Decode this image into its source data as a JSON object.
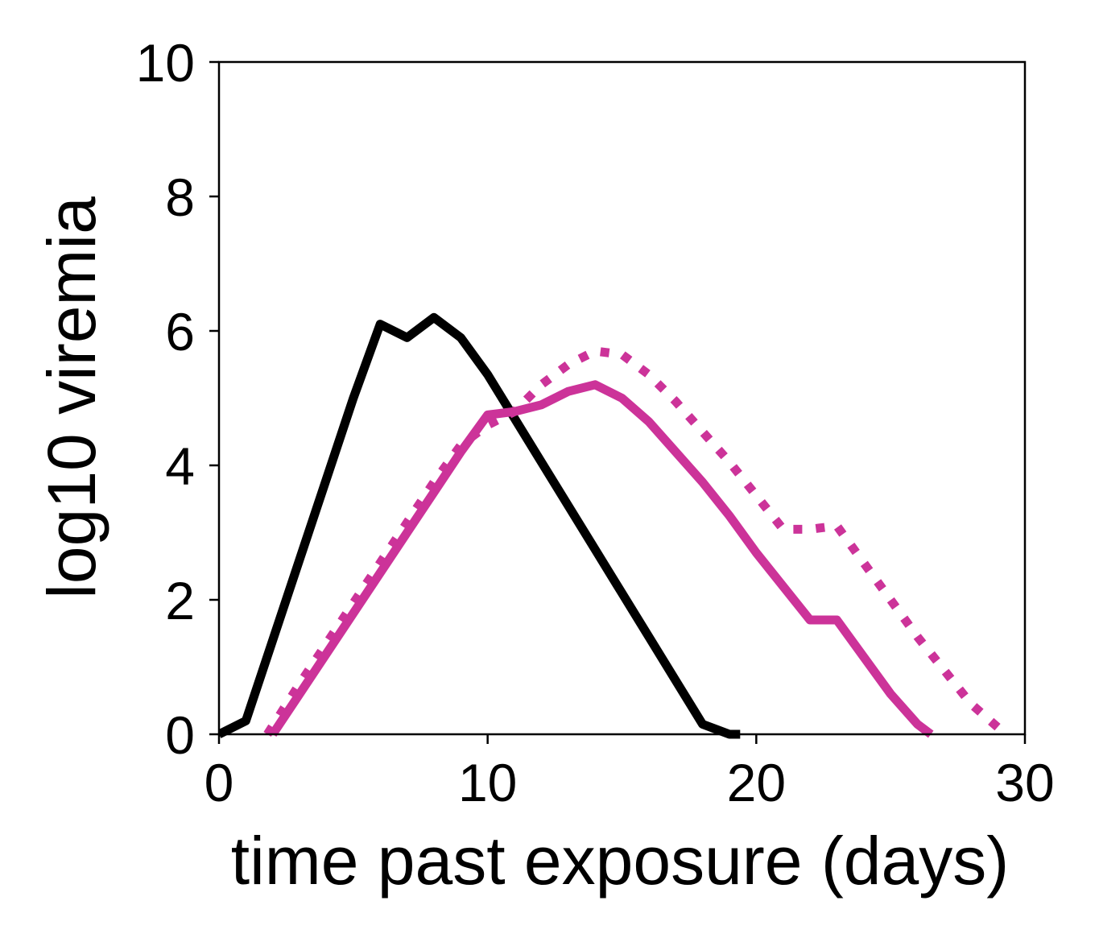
{
  "chart_data": {
    "type": "line",
    "title": "",
    "xlabel": "time past exposure (days)",
    "ylabel": "log10 viremia",
    "xlim": [
      0,
      30
    ],
    "ylim": [
      0,
      10
    ],
    "xticks": [
      0,
      10,
      20,
      30
    ],
    "yticks": [
      0,
      2,
      4,
      6,
      8,
      10
    ],
    "grid": false,
    "legend": "none",
    "series": [
      {
        "color": "#000000",
        "style": "solid",
        "x": [
          0,
          1,
          2,
          3,
          4,
          5,
          6,
          7,
          8,
          9,
          10,
          11,
          12,
          13,
          14,
          15,
          16,
          17,
          18,
          19,
          19.4
        ],
        "y": [
          0,
          0.2,
          1.4,
          2.6,
          3.8,
          5.0,
          6.1,
          5.9,
          6.2,
          5.9,
          5.35,
          4.7,
          4.05,
          3.4,
          2.75,
          2.1,
          1.45,
          0.8,
          0.15,
          0.0,
          0
        ]
      },
      {
        "color": "#CC3399",
        "style": "solid",
        "x": [
          2,
          3,
          4,
          5,
          6,
          7,
          8,
          9,
          10,
          11,
          12,
          13,
          14,
          15,
          16,
          17,
          18,
          19,
          20,
          21,
          22,
          23,
          24,
          25,
          26,
          26.5
        ],
        "y": [
          0,
          0.6,
          1.2,
          1.8,
          2.4,
          3.0,
          3.6,
          4.2,
          4.75,
          4.8,
          4.9,
          5.1,
          5.2,
          5.0,
          4.65,
          4.2,
          3.75,
          3.25,
          2.7,
          2.2,
          1.7,
          1.7,
          1.15,
          0.6,
          0.15,
          0
        ]
      },
      {
        "color": "#CC3399",
        "style": "dotted",
        "x": [
          1.8,
          3,
          4,
          5,
          6,
          7,
          8,
          9,
          10,
          11,
          12,
          13,
          14,
          15,
          16,
          17,
          18,
          19,
          20,
          21,
          22,
          23,
          24,
          25,
          26,
          27,
          28,
          29
        ],
        "y": [
          0,
          0.75,
          1.35,
          1.95,
          2.55,
          3.15,
          3.75,
          4.3,
          4.6,
          4.8,
          5.2,
          5.5,
          5.7,
          5.65,
          5.35,
          4.95,
          4.5,
          4.05,
          3.55,
          3.05,
          3.05,
          3.1,
          2.55,
          2.0,
          1.45,
          0.95,
          0.45,
          0.1
        ]
      }
    ]
  }
}
